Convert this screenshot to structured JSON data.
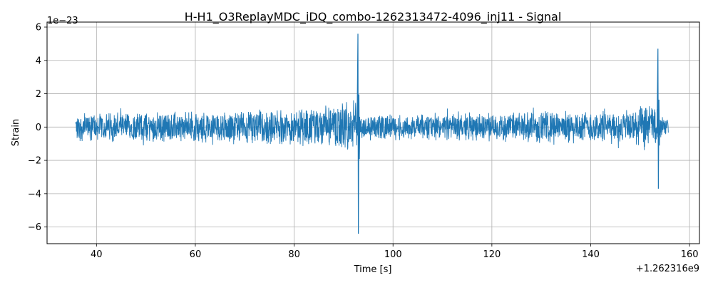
{
  "chart_data": {
    "type": "line",
    "title": "H-H1_O3ReplayMDC_iDQ_combo-1262313472-4096_inj11 - Signal",
    "xlabel": "Time [s]",
    "ylabel": "Strain",
    "x_offset_label": "+1.262316e9",
    "y_scale_label": "1e−23",
    "xlim": [
      30,
      162
    ],
    "ylim": [
      -7,
      6.3
    ],
    "x_ticks": [
      40,
      60,
      80,
      100,
      120,
      140,
      160
    ],
    "y_ticks": [
      -6,
      -4,
      -2,
      0,
      2,
      4,
      6
    ],
    "x_tick_labels": [
      "40",
      "60",
      "80",
      "100",
      "120",
      "140",
      "160"
    ],
    "y_tick_labels": [
      "−6",
      "−4",
      "−2",
      "0",
      "2",
      "4",
      "6"
    ],
    "grid": true,
    "series": [
      {
        "color": "#1f77b4",
        "x_range": [
          35.8,
          155.7
        ],
        "baseline_amplitude": 1.0,
        "envelope": [
          {
            "x": 35.8,
            "amp": 0.9
          },
          {
            "x": 60,
            "amp": 1.0
          },
          {
            "x": 80,
            "amp": 1.15
          },
          {
            "x": 88,
            "amp": 1.4
          },
          {
            "x": 92.5,
            "amp": 1.8
          },
          {
            "x": 93.2,
            "amp": 0.8
          },
          {
            "x": 120,
            "amp": 0.9
          },
          {
            "x": 145,
            "amp": 1.1
          },
          {
            "x": 153,
            "amp": 1.6
          },
          {
            "x": 154,
            "amp": 0.7
          },
          {
            "x": 155.7,
            "amp": 0.6
          }
        ],
        "glitches": [
          {
            "x": 92.9,
            "max": 5.6,
            "min": -6.4
          },
          {
            "x": 153.6,
            "max": 4.7,
            "min": -3.7
          }
        ]
      }
    ]
  }
}
